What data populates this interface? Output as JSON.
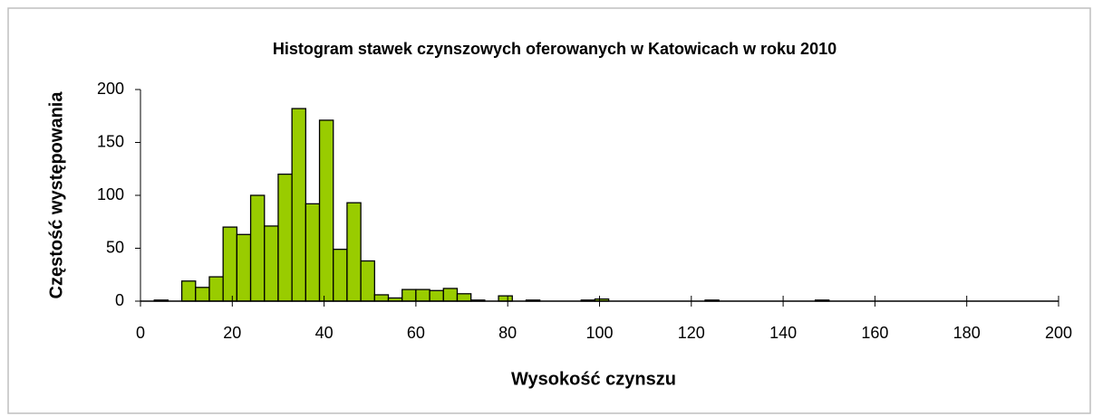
{
  "chart_data": {
    "type": "histogram",
    "title": "Histogram stawek czynszowych oferowanych w Katowicach w roku 2010",
    "x_label": "Wysokość czynszu",
    "y_label": "Częstość występowania",
    "bins": [
      0,
      3,
      6,
      9,
      12,
      15,
      18,
      21,
      24,
      27,
      30,
      33,
      36,
      39,
      42,
      45,
      48,
      51,
      54,
      57,
      60,
      63,
      66,
      69,
      72,
      75,
      78,
      81,
      84,
      87,
      90,
      93,
      96,
      99,
      102,
      105,
      108,
      111,
      114,
      117,
      120,
      123,
      126,
      129,
      132,
      135,
      138,
      141,
      144,
      147,
      150,
      153,
      156,
      159,
      162,
      165,
      168,
      171,
      174,
      177,
      180,
      183,
      186,
      189,
      192,
      195,
      198
    ],
    "values": [
      0,
      1,
      0,
      19,
      13,
      23,
      70,
      63,
      100,
      71,
      120,
      182,
      92,
      171,
      49,
      93,
      38,
      6,
      3,
      11,
      11,
      10,
      12,
      7,
      1,
      0,
      5,
      0,
      1,
      0,
      0,
      0,
      1,
      2,
      0,
      0,
      0,
      0,
      0,
      0,
      0,
      1,
      0,
      0,
      0,
      0,
      0,
      0,
      0,
      1,
      0,
      0,
      0,
      0,
      0,
      0,
      0,
      0,
      0,
      0,
      0,
      0,
      0,
      0,
      0,
      0
    ],
    "color": "#99cc00",
    "xlim": [
      0,
      200
    ],
    "xticks": [
      0,
      20,
      40,
      60,
      80,
      100,
      120,
      140,
      160,
      180,
      200
    ],
    "ylim": [
      0,
      200
    ],
    "yticks": [
      0,
      50,
      100,
      150,
      200
    ]
  }
}
